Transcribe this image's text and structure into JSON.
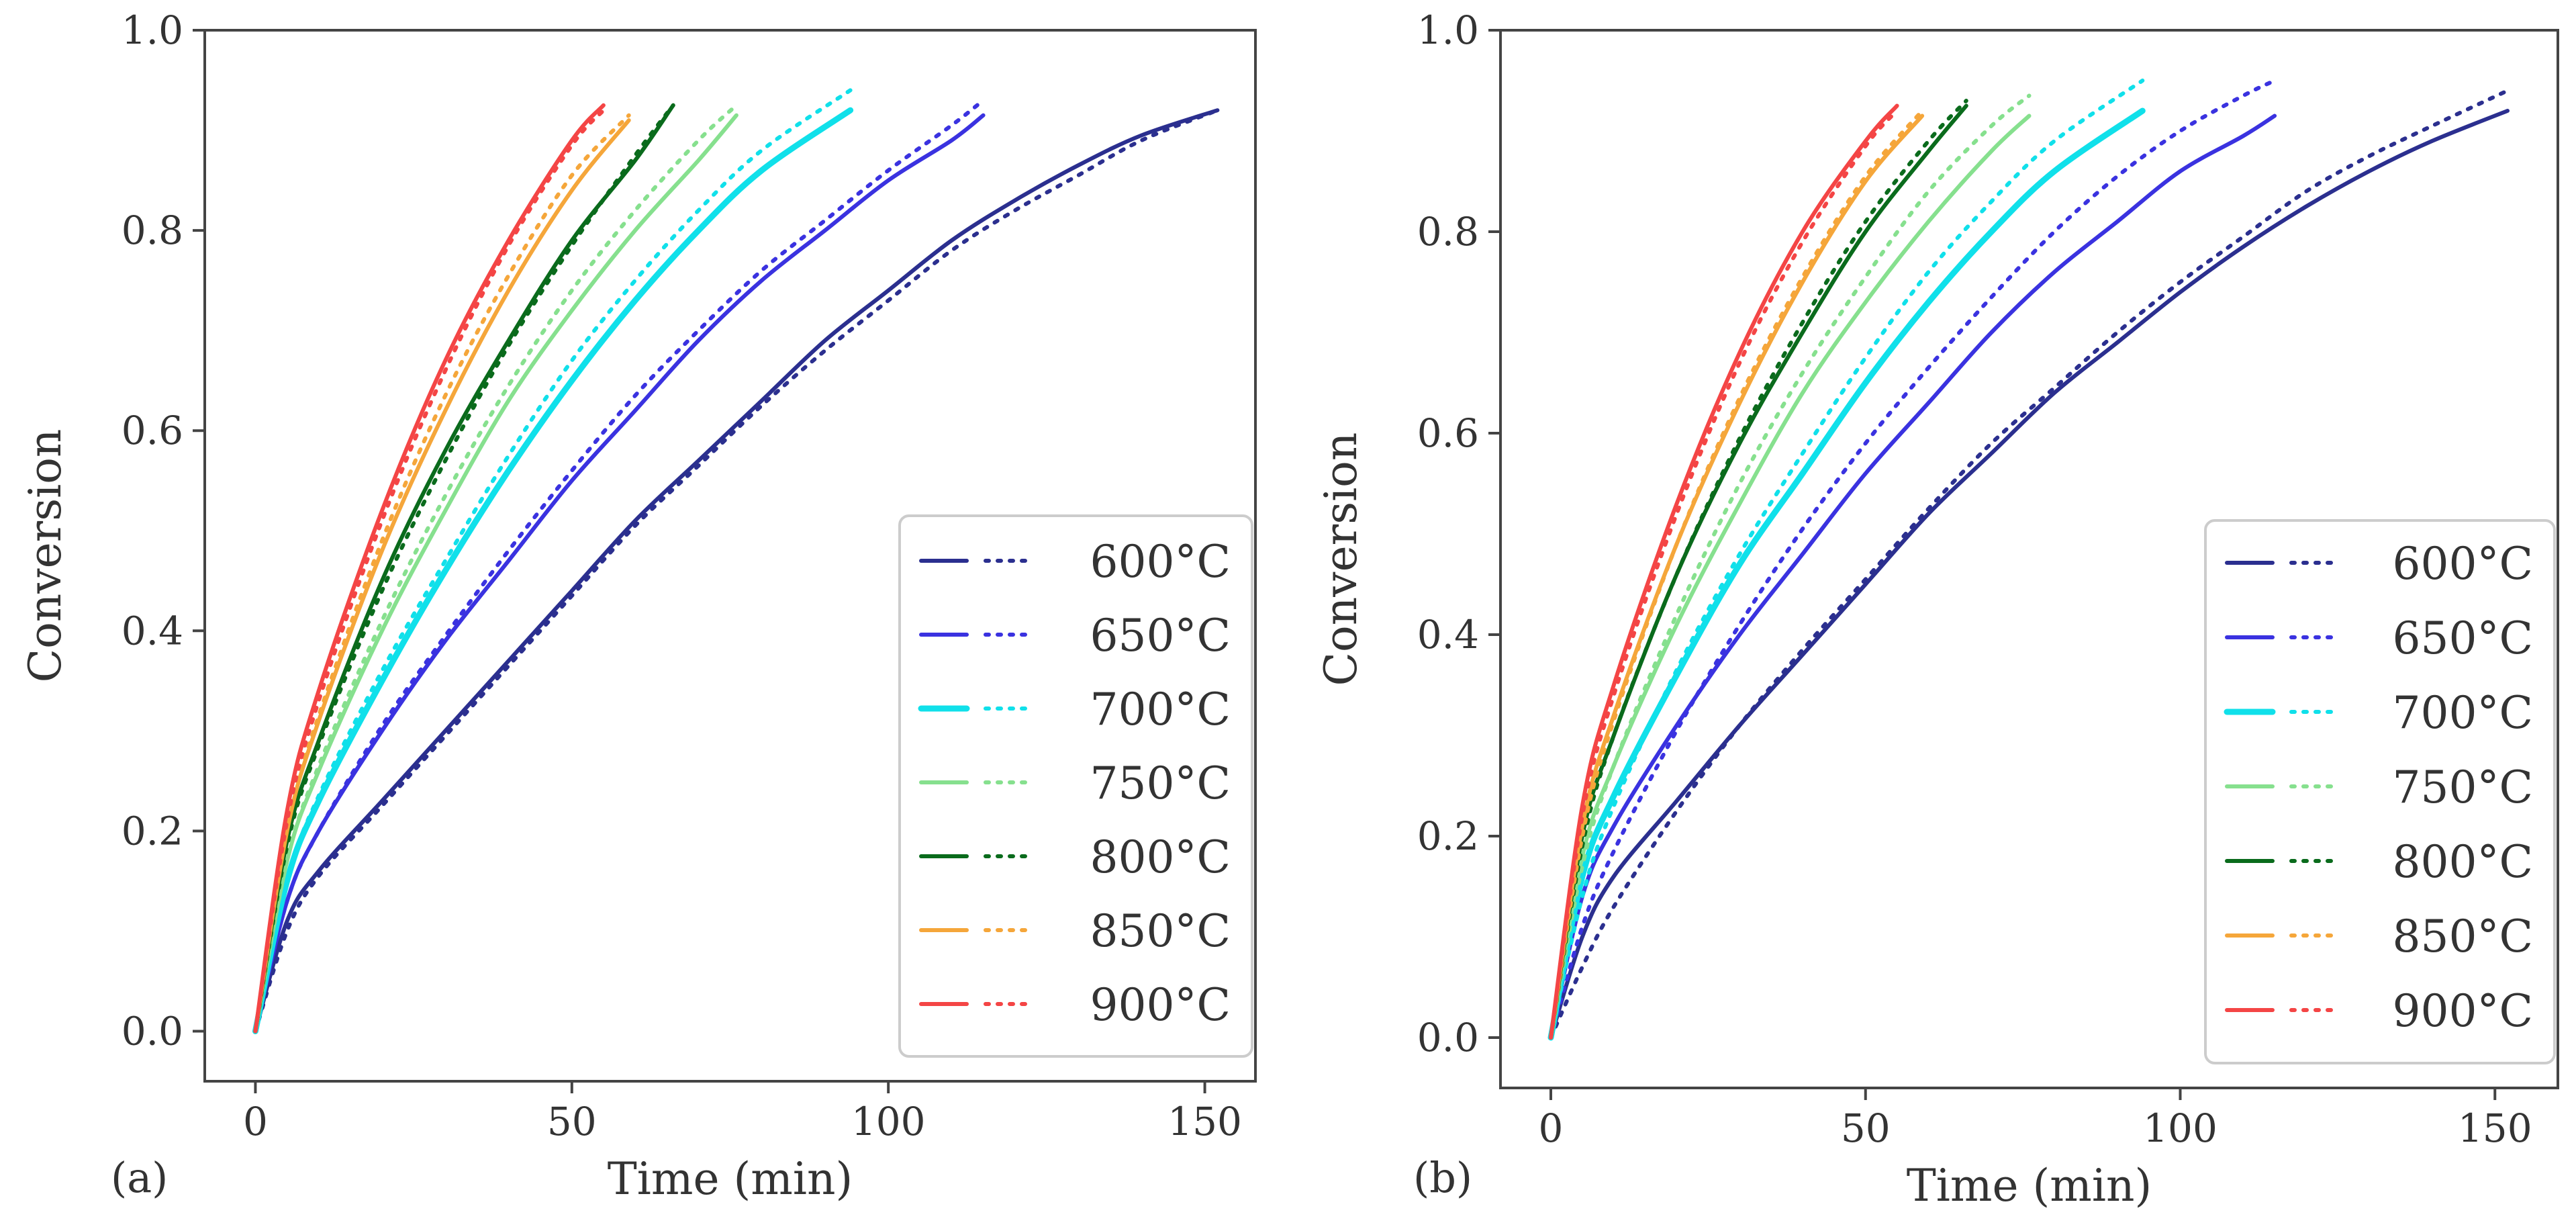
{
  "colors": {
    "600": "#2b2f8f",
    "650": "#3a32e0",
    "700": "#10e0ea",
    "750": "#86e08e",
    "800": "#0a6b1c",
    "850": "#f5a63a",
    "900": "#f44545"
  },
  "chart_data": [
    {
      "panel": "(a)",
      "type": "line",
      "xlabel": "Time (min)",
      "ylabel": "Conversion",
      "xlim": [
        -8,
        158
      ],
      "ylim": [
        -0.05,
        1.0
      ],
      "xticks": [
        0,
        50,
        100,
        150
      ],
      "yticks": [
        0.0,
        0.2,
        0.4,
        0.6,
        0.8,
        1.0
      ],
      "legend_position": "lower-right",
      "series": [
        {
          "name": "600°C",
          "key": "600",
          "t_end": 152,
          "exp": {
            "x": [
              0,
              5,
              10,
              20,
              30,
              40,
              50,
              60,
              70,
              80,
              90,
              100,
              110,
              120,
              130,
              140,
              152
            ],
            "y": [
              0.0,
              0.11,
              0.16,
              0.23,
              0.3,
              0.37,
              0.44,
              0.51,
              0.57,
              0.63,
              0.69,
              0.74,
              0.79,
              0.83,
              0.865,
              0.895,
              0.92
            ]
          },
          "model": {
            "x": [
              0,
              5,
              10,
              20,
              30,
              40,
              50,
              60,
              70,
              80,
              90,
              100,
              110,
              120,
              130,
              140,
              152
            ],
            "y": [
              0.0,
              0.1,
              0.155,
              0.225,
              0.295,
              0.365,
              0.435,
              0.505,
              0.565,
              0.625,
              0.68,
              0.73,
              0.78,
              0.82,
              0.855,
              0.89,
              0.92
            ]
          }
        },
        {
          "name": "650°C",
          "key": "650",
          "t_end": 115,
          "exp": {
            "x": [
              0,
              5,
              10,
              20,
              30,
              40,
              50,
              60,
              70,
              80,
              90,
              100,
              110,
              115
            ],
            "y": [
              0.0,
              0.13,
              0.2,
              0.3,
              0.39,
              0.47,
              0.55,
              0.62,
              0.69,
              0.75,
              0.8,
              0.85,
              0.89,
              0.915
            ]
          },
          "model": {
            "x": [
              0,
              5,
              10,
              20,
              30,
              40,
              50,
              60,
              70,
              80,
              90,
              100,
              110,
              115
            ],
            "y": [
              0.0,
              0.13,
              0.2,
              0.305,
              0.395,
              0.48,
              0.56,
              0.635,
              0.7,
              0.76,
              0.81,
              0.86,
              0.905,
              0.93
            ]
          }
        },
        {
          "name": "700°C",
          "key": "700",
          "t_end": 94,
          "exp": {
            "x": [
              0,
              5,
              10,
              20,
              30,
              40,
              50,
              60,
              70,
              80,
              94
            ],
            "y": [
              0.0,
              0.15,
              0.23,
              0.35,
              0.46,
              0.56,
              0.65,
              0.73,
              0.8,
              0.86,
              0.92
            ]
          },
          "model": {
            "x": [
              0,
              5,
              10,
              20,
              30,
              40,
              50,
              60,
              70,
              80,
              94
            ],
            "y": [
              0.0,
              0.15,
              0.235,
              0.36,
              0.47,
              0.575,
              0.67,
              0.75,
              0.82,
              0.88,
              0.94
            ]
          }
        },
        {
          "name": "750°C",
          "key": "750",
          "t_end": 76,
          "exp": {
            "x": [
              0,
              5,
              10,
              20,
              30,
              40,
              50,
              60,
              70,
              76
            ],
            "y": [
              0.0,
              0.17,
              0.26,
              0.4,
              0.52,
              0.63,
              0.72,
              0.8,
              0.87,
              0.915
            ]
          },
          "model": {
            "x": [
              0,
              5,
              10,
              20,
              30,
              40,
              50,
              60,
              70,
              76
            ],
            "y": [
              0.0,
              0.17,
              0.265,
              0.41,
              0.535,
              0.645,
              0.74,
              0.82,
              0.89,
              0.925
            ]
          }
        },
        {
          "name": "800°C",
          "key": "800",
          "t_end": 66,
          "exp": {
            "x": [
              0,
              5,
              10,
              20,
              30,
              40,
              50,
              60,
              66
            ],
            "y": [
              0.0,
              0.19,
              0.29,
              0.45,
              0.58,
              0.69,
              0.79,
              0.87,
              0.925
            ]
          },
          "model": {
            "x": [
              0,
              5,
              10,
              20,
              30,
              40,
              50,
              60,
              66
            ],
            "y": [
              0.0,
              0.185,
              0.285,
              0.44,
              0.57,
              0.685,
              0.785,
              0.875,
              0.925
            ]
          }
        },
        {
          "name": "850°C",
          "key": "850",
          "t_end": 59,
          "exp": {
            "x": [
              0,
              5,
              10,
              20,
              30,
              40,
              50,
              59
            ],
            "y": [
              0.0,
              0.2,
              0.31,
              0.48,
              0.62,
              0.74,
              0.84,
              0.91
            ]
          },
          "model": {
            "x": [
              0,
              5,
              10,
              20,
              30,
              40,
              50,
              59
            ],
            "y": [
              0.0,
              0.205,
              0.315,
              0.49,
              0.635,
              0.755,
              0.855,
              0.915
            ]
          }
        },
        {
          "name": "900°C",
          "key": "900",
          "t_end": 55,
          "exp": {
            "x": [
              0,
              5,
              10,
              20,
              30,
              40,
              50,
              55
            ],
            "y": [
              0.0,
              0.22,
              0.34,
              0.52,
              0.67,
              0.79,
              0.89,
              0.925
            ]
          },
          "model": {
            "x": [
              0,
              5,
              10,
              20,
              30,
              40,
              50,
              55
            ],
            "y": [
              0.0,
              0.21,
              0.33,
              0.51,
              0.66,
              0.785,
              0.885,
              0.92
            ]
          }
        }
      ]
    },
    {
      "panel": "(b)",
      "type": "line",
      "xlabel": "Time (min)",
      "ylabel": "Conversion",
      "xlim": [
        -8,
        160
      ],
      "ylim": [
        -0.05,
        1.0
      ],
      "xticks": [
        0,
        50,
        100,
        150
      ],
      "yticks": [
        0.0,
        0.2,
        0.4,
        0.6,
        0.8,
        1.0
      ],
      "legend_position": "lower-right",
      "series": [
        {
          "name": "600°C",
          "key": "600",
          "t_end": 152,
          "exp": {
            "x": [
              0,
              5,
              10,
              20,
              30,
              40,
              50,
              60,
              70,
              80,
              90,
              100,
              110,
              120,
              130,
              140,
              152
            ],
            "y": [
              0.0,
              0.1,
              0.16,
              0.235,
              0.31,
              0.38,
              0.45,
              0.52,
              0.58,
              0.64,
              0.69,
              0.74,
              0.785,
              0.825,
              0.86,
              0.89,
              0.92
            ]
          },
          "model": {
            "x": [
              0,
              5,
              10,
              20,
              30,
              40,
              50,
              60,
              70,
              80,
              90,
              100,
              110,
              120,
              130,
              140,
              152
            ],
            "y": [
              0.0,
              0.07,
              0.13,
              0.225,
              0.31,
              0.385,
              0.455,
              0.525,
              0.59,
              0.645,
              0.7,
              0.75,
              0.795,
              0.84,
              0.875,
              0.905,
              0.94
            ]
          }
        },
        {
          "name": "650°C",
          "key": "650",
          "t_end": 115,
          "exp": {
            "x": [
              0,
              5,
              10,
              20,
              30,
              40,
              50,
              60,
              70,
              80,
              90,
              100,
              110,
              115
            ],
            "y": [
              0.0,
              0.14,
              0.21,
              0.31,
              0.4,
              0.48,
              0.56,
              0.63,
              0.7,
              0.76,
              0.81,
              0.86,
              0.895,
              0.915
            ]
          },
          "model": {
            "x": [
              0,
              5,
              10,
              20,
              30,
              40,
              50,
              60,
              70,
              80,
              90,
              100,
              110,
              115
            ],
            "y": [
              0.0,
              0.11,
              0.185,
              0.305,
              0.41,
              0.505,
              0.59,
              0.665,
              0.735,
              0.8,
              0.855,
              0.9,
              0.935,
              0.95
            ]
          }
        },
        {
          "name": "700°C",
          "key": "700",
          "t_end": 94,
          "exp": {
            "x": [
              0,
              5,
              10,
              20,
              30,
              40,
              50,
              60,
              70,
              80,
              94
            ],
            "y": [
              0.0,
              0.16,
              0.24,
              0.36,
              0.47,
              0.56,
              0.65,
              0.73,
              0.8,
              0.86,
              0.92
            ]
          },
          "model": {
            "x": [
              0,
              5,
              10,
              20,
              30,
              40,
              50,
              60,
              70,
              80,
              94
            ],
            "y": [
              0.0,
              0.14,
              0.23,
              0.365,
              0.48,
              0.58,
              0.675,
              0.76,
              0.83,
              0.89,
              0.95
            ]
          }
        },
        {
          "name": "750°C",
          "key": "750",
          "t_end": 76,
          "exp": {
            "x": [
              0,
              5,
              10,
              20,
              30,
              40,
              50,
              60,
              70,
              76
            ],
            "y": [
              0.0,
              0.18,
              0.27,
              0.41,
              0.53,
              0.64,
              0.73,
              0.81,
              0.88,
              0.915
            ]
          },
          "model": {
            "x": [
              0,
              5,
              10,
              20,
              30,
              40,
              50,
              60,
              70,
              76
            ],
            "y": [
              0.0,
              0.17,
              0.27,
              0.42,
              0.55,
              0.66,
              0.755,
              0.84,
              0.905,
              0.935
            ]
          }
        },
        {
          "name": "800°C",
          "key": "800",
          "t_end": 66,
          "exp": {
            "x": [
              0,
              5,
              10,
              20,
              30,
              40,
              50,
              60,
              66
            ],
            "y": [
              0.0,
              0.2,
              0.3,
              0.46,
              0.59,
              0.7,
              0.8,
              0.88,
              0.925
            ]
          },
          "model": {
            "x": [
              0,
              5,
              10,
              20,
              30,
              40,
              50,
              60,
              66
            ],
            "y": [
              0.0,
              0.19,
              0.3,
              0.46,
              0.595,
              0.71,
              0.81,
              0.89,
              0.93
            ]
          }
        },
        {
          "name": "850°C",
          "key": "850",
          "t_end": 59,
          "exp": {
            "x": [
              0,
              5,
              10,
              20,
              30,
              40,
              50,
              59
            ],
            "y": [
              0.0,
              0.21,
              0.32,
              0.49,
              0.63,
              0.75,
              0.85,
              0.915
            ]
          },
          "model": {
            "x": [
              0,
              5,
              10,
              20,
              30,
              40,
              50,
              59
            ],
            "y": [
              0.0,
              0.2,
              0.315,
              0.49,
              0.635,
              0.755,
              0.855,
              0.92
            ]
          }
        },
        {
          "name": "900°C",
          "key": "900",
          "t_end": 55,
          "exp": {
            "x": [
              0,
              5,
              10,
              20,
              30,
              40,
              50,
              55
            ],
            "y": [
              0.0,
              0.23,
              0.35,
              0.53,
              0.68,
              0.8,
              0.89,
              0.925
            ]
          },
          "model": {
            "x": [
              0,
              5,
              10,
              20,
              30,
              40,
              50,
              55
            ],
            "y": [
              0.0,
              0.22,
              0.34,
              0.52,
              0.67,
              0.79,
              0.885,
              0.92
            ]
          }
        }
      ]
    }
  ]
}
